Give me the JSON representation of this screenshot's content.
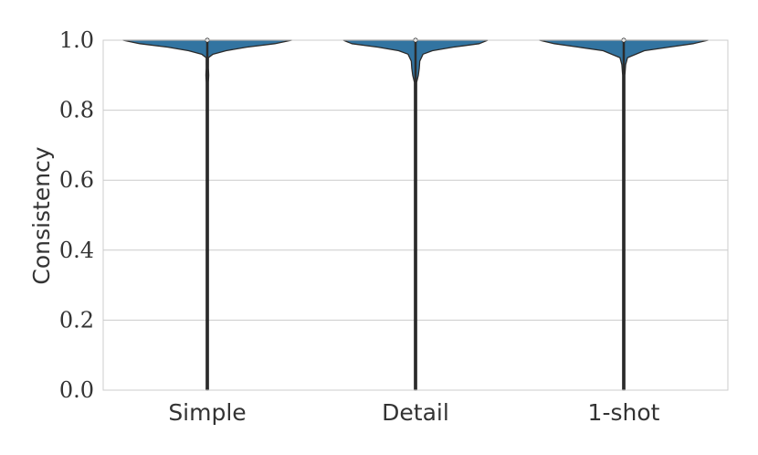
{
  "chart_data": {
    "type": "violin",
    "title": "",
    "xlabel": "",
    "ylabel": "Consistency",
    "ylim": [
      0.0,
      1.0
    ],
    "yticks": [
      "0.0",
      "0.2",
      "0.4",
      "0.6",
      "0.8",
      "1.0"
    ],
    "grid": true,
    "categories": [
      "Simple",
      "Detail",
      "1-shot"
    ],
    "fill_color": "#3274a1",
    "line_color": "#2b2b2b",
    "grid_color": "#cccccc",
    "series": [
      {
        "category": "Simple",
        "min": 0.0,
        "max": 1.0,
        "median": 1.0,
        "density": [
          [
            0.0,
            0.012
          ],
          [
            0.01,
            0.004
          ],
          [
            0.05,
            0.003
          ],
          [
            0.2,
            0.003
          ],
          [
            0.3,
            0.004
          ],
          [
            0.5,
            0.005
          ],
          [
            0.6,
            0.003
          ],
          [
            0.7,
            0.004
          ],
          [
            0.8,
            0.006
          ],
          [
            0.85,
            0.004
          ],
          [
            0.88,
            0.005
          ],
          [
            0.9,
            0.015
          ],
          [
            0.92,
            0.007
          ],
          [
            0.95,
            0.012
          ],
          [
            0.96,
            0.06
          ],
          [
            0.97,
            0.2
          ],
          [
            0.98,
            0.42
          ],
          [
            0.99,
            0.72
          ],
          [
            1.0,
            0.9
          ]
        ]
      },
      {
        "category": "Detail",
        "min": 0.0,
        "max": 1.0,
        "median": 1.0,
        "density": [
          [
            0.0,
            0.003
          ],
          [
            0.2,
            0.003
          ],
          [
            0.38,
            0.005
          ],
          [
            0.5,
            0.007
          ],
          [
            0.6,
            0.004
          ],
          [
            0.7,
            0.004
          ],
          [
            0.8,
            0.004
          ],
          [
            0.85,
            0.006
          ],
          [
            0.88,
            0.012
          ],
          [
            0.9,
            0.03
          ],
          [
            0.92,
            0.04
          ],
          [
            0.94,
            0.045
          ],
          [
            0.96,
            0.08
          ],
          [
            0.97,
            0.18
          ],
          [
            0.98,
            0.4
          ],
          [
            0.99,
            0.68
          ],
          [
            1.0,
            0.77
          ]
        ]
      },
      {
        "category": "1-shot",
        "min": 0.0,
        "max": 1.0,
        "median": 1.0,
        "density": [
          [
            0.0,
            0.004
          ],
          [
            0.2,
            0.003
          ],
          [
            0.4,
            0.004
          ],
          [
            0.6,
            0.004
          ],
          [
            0.7,
            0.012
          ],
          [
            0.75,
            0.004
          ],
          [
            0.85,
            0.005
          ],
          [
            0.9,
            0.01
          ],
          [
            0.93,
            0.02
          ],
          [
            0.95,
            0.04
          ],
          [
            0.97,
            0.22
          ],
          [
            0.98,
            0.48
          ],
          [
            0.99,
            0.74
          ],
          [
            1.0,
            0.9
          ]
        ]
      }
    ]
  }
}
